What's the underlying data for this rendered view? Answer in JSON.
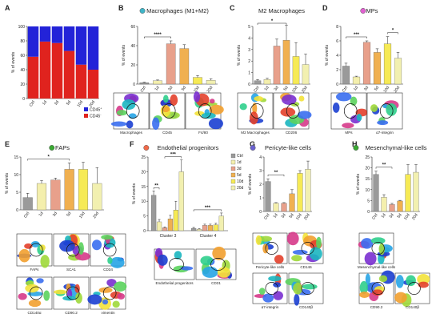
{
  "chart_data": [
    {
      "letter": "A",
      "type": "bar",
      "stacked": true,
      "title": "",
      "ylabel": "% of events",
      "ylim": [
        0,
        100
      ],
      "yticks": [
        0,
        20,
        40,
        60,
        80,
        100
      ],
      "categories": [
        "Ctrl",
        "1d",
        "3d",
        "5d",
        "10d",
        "20d"
      ],
      "series": [
        {
          "name": "CD45-",
          "color": "#e0231e",
          "values": [
            58,
            79,
            77,
            66,
            47,
            40
          ]
        },
        {
          "name": "CD45+",
          "color": "#2323d8",
          "values": [
            42,
            21,
            23,
            34,
            53,
            60
          ]
        }
      ],
      "legend": [
        "CD45+",
        "CD45-"
      ],
      "legend_sup": [
        "+",
        "-"
      ],
      "legend_base": "CD45"
    },
    {
      "letter": "B",
      "type": "bar",
      "title": "Macrophages (M1+M2)",
      "dot_color": "#3fb5c8",
      "ylabel": "% of events",
      "ylim": [
        0,
        60
      ],
      "yticks": [
        0,
        20,
        40,
        60
      ],
      "categories": [
        "Ctrl",
        "1d",
        "3d",
        "5d",
        "10d",
        "20d"
      ],
      "values": [
        1.5,
        3.5,
        42,
        37,
        7,
        4
      ],
      "errors": [
        0.5,
        0.8,
        3,
        4,
        2,
        1.5
      ],
      "colors": [
        "#9a9a9a",
        "#f4efad",
        "#e8a08b",
        "#f0b050",
        "#f6ea55",
        "#f2f0b0"
      ],
      "significance": [
        {
          "from": 0,
          "to": 2,
          "label": "****"
        }
      ],
      "tsne_labels": [
        "Macrophages",
        "CD45",
        "F4/80"
      ]
    },
    {
      "letter": "C",
      "type": "bar",
      "title": "M2 Macrophages",
      "dot_color": "",
      "ylabel": "% of events",
      "ylim": [
        0,
        5
      ],
      "yticks": [
        0,
        1,
        2,
        3,
        4,
        5
      ],
      "categories": [
        "Ctrl",
        "1d",
        "3d",
        "5d",
        "10d",
        "20d"
      ],
      "values": [
        0.3,
        0.4,
        3.3,
        3.8,
        2.4,
        1.7
      ],
      "errors": [
        0.1,
        0.1,
        0.6,
        1.3,
        1.2,
        0.9
      ],
      "colors": [
        "#9a9a9a",
        "#f4efad",
        "#e8a08b",
        "#f0b050",
        "#f6ea55",
        "#f2f0b0"
      ],
      "significance": [
        {
          "from": 0,
          "to": 3,
          "label": "*"
        }
      ],
      "tsne_labels": [
        "M2 Macrophages",
        "CD206"
      ]
    },
    {
      "letter": "D",
      "type": "bar",
      "title": "MPs",
      "dot_color": "#e060d0",
      "ylabel": "% of events",
      "ylim": [
        0,
        8
      ],
      "yticks": [
        0,
        2,
        4,
        6,
        8
      ],
      "categories": [
        "Ctrl",
        "1d",
        "3d",
        "5d",
        "10d",
        "20d"
      ],
      "values": [
        2.5,
        1.0,
        5.8,
        4.4,
        5.6,
        3.6
      ],
      "errors": [
        0.4,
        0.1,
        0.2,
        0.5,
        1.0,
        0.8
      ],
      "colors": [
        "#9a9a9a",
        "#f4efad",
        "#e8a08b",
        "#f0b050",
        "#f6ea55",
        "#f2f0b0"
      ],
      "significance": [
        {
          "from": 0,
          "to": 2,
          "label": "***"
        },
        {
          "from": 4,
          "to": 5,
          "label": "*"
        }
      ],
      "tsne_labels": [
        "MPs",
        "α7-integrin"
      ]
    },
    {
      "letter": "E",
      "type": "bar",
      "title": "FAPs",
      "dot_color": "#3aa832",
      "ylabel": "% of events",
      "ylim": [
        0,
        15
      ],
      "yticks": [
        0,
        5,
        10,
        15
      ],
      "categories": [
        "Ctrl",
        "1d",
        "3d",
        "5d",
        "10d",
        "20d"
      ],
      "values": [
        3.5,
        7.5,
        8.5,
        11.5,
        11.5,
        7.5
      ],
      "errors": [
        1.2,
        0.8,
        0.5,
        1.8,
        2.0,
        4.5
      ],
      "colors": [
        "#9a9a9a",
        "#f4efad",
        "#e8a08b",
        "#f0b050",
        "#f6ea55",
        "#f2f0b0"
      ],
      "significance": [
        {
          "from": 0,
          "to": 3,
          "label": "*"
        }
      ],
      "tsne_labels": [
        "FAPs",
        "SCA1",
        "CD34",
        "CD140α",
        "CD90.2",
        "vimentin"
      ]
    },
    {
      "letter": "F",
      "type": "bar",
      "grouped": true,
      "title": "Endothelial progenitors",
      "dot_color": "#f06a4a",
      "ylabel": "% of events",
      "ylim": [
        0,
        25
      ],
      "yticks": [
        0,
        5,
        10,
        15,
        20,
        25
      ],
      "groups": [
        "Cluster 3",
        "Cluster 4"
      ],
      "series": [
        {
          "name": "Ctrl",
          "color": "#9a9a9a",
          "values": [
            12,
            0.8
          ],
          "errors": [
            1.5,
            0.3
          ]
        },
        {
          "name": "1d",
          "color": "#f4efad",
          "values": [
            3,
            0.5
          ],
          "errors": [
            0.8,
            0.2
          ]
        },
        {
          "name": "3d",
          "color": "#e8a08b",
          "values": [
            1,
            1.8
          ],
          "errors": [
            0.3,
            0.4
          ]
        },
        {
          "name": "5d",
          "color": "#f0b050",
          "values": [
            4,
            1.8
          ],
          "errors": [
            1.2,
            0.4
          ]
        },
        {
          "name": "10d",
          "color": "#f6ea55",
          "values": [
            7,
            2
          ],
          "errors": [
            3,
            0.5
          ]
        },
        {
          "name": "20d",
          "color": "#f2f0b0",
          "values": [
            20,
            5
          ],
          "errors": [
            4,
            1
          ]
        }
      ],
      "significance": [
        {
          "group": 0,
          "from": 0,
          "to": 1,
          "label": "**"
        },
        {
          "group": 0,
          "from": 2,
          "to": 5,
          "label": "***"
        },
        {
          "group": 1,
          "from": 0,
          "to": 5,
          "label": "***"
        }
      ],
      "tsne_labels": [
        "Endothelial progenitors",
        "CD31"
      ]
    },
    {
      "letter": "G",
      "type": "bar",
      "title": "Pericyte-like cells",
      "dot_color": "#6a62d0",
      "ylabel": "% of events",
      "ylim": [
        0,
        4
      ],
      "yticks": [
        0,
        1,
        2,
        3,
        4
      ],
      "categories": [
        "Ctrl",
        "1d",
        "3d",
        "5d",
        "10d",
        "20d"
      ],
      "values": [
        2.2,
        0.6,
        0.6,
        1.3,
        2.8,
        3.1
      ],
      "errors": [
        0.2,
        0.05,
        0.05,
        0.3,
        0.2,
        0.6
      ],
      "colors": [
        "#9a9a9a",
        "#f4efad",
        "#e8a08b",
        "#f0b050",
        "#f6ea55",
        "#f2f0b0"
      ],
      "significance": [
        {
          "from": 0,
          "to": 2,
          "label": "**"
        }
      ],
      "tsne_labels": [
        "Pericyte-like cells",
        "CD146",
        "α7-integrin",
        "CD140β"
      ]
    },
    {
      "letter": "H",
      "type": "bar",
      "title": "Mesenchymal-like cells",
      "dot_color": "#3aa832",
      "ylabel": "% of events",
      "ylim": [
        0,
        25
      ],
      "yticks": [
        0,
        5,
        10,
        15,
        20,
        25
      ],
      "categories": [
        "Ctrl",
        "1d",
        "3d",
        "5d",
        "10d",
        "20d"
      ],
      "values": [
        17,
        6.5,
        3.2,
        4.8,
        17,
        18
      ],
      "errors": [
        1.5,
        1.2,
        0.5,
        0.3,
        4.5,
        3.5
      ],
      "colors": [
        "#9a9a9a",
        "#f4efad",
        "#e8a08b",
        "#f0b050",
        "#f6ea55",
        "#f2f0b0"
      ],
      "significance": [
        {
          "from": 0,
          "to": 2,
          "label": "**"
        }
      ],
      "tsne_labels": [
        "Mesenchymal-like cells",
        "CD90.2",
        "CD140β"
      ]
    }
  ]
}
